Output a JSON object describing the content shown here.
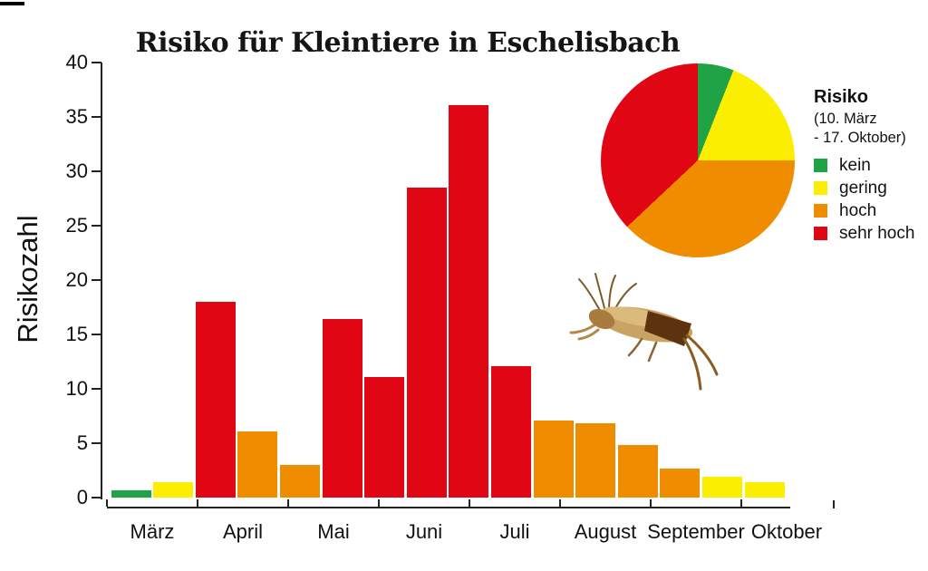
{
  "title": "Risiko für Kleintiere in Eschelisbach",
  "y_axis": {
    "label": "Risikozahl",
    "min": 0,
    "max": 40,
    "tick_step": 5
  },
  "x_axis": {
    "months": [
      "März",
      "April",
      "Mai",
      "Juni",
      "Juli",
      "August",
      "September",
      "Oktober"
    ]
  },
  "legend": {
    "title": "Risiko",
    "period_line1": "(10. März",
    "period_line2": " - 17. Oktober)",
    "items": [
      {
        "label": "kein",
        "level": "kein"
      },
      {
        "label": "gering",
        "level": "gering"
      },
      {
        "label": "hoch",
        "level": "hoch"
      },
      {
        "label": "sehr hoch",
        "level": "sehr hoch"
      }
    ]
  },
  "colors": {
    "kein": "#1fa344",
    "gering": "#fcee00",
    "hoch": "#f08c00",
    "sehr hoch": "#e00613",
    "axis": "#222222",
    "title_text": "#171513"
  },
  "cricket_image_alt": "Maulwurfsgrille (mole cricket)",
  "chart_data": [
    {
      "type": "bar",
      "title": "Risiko für Kleintiere in Eschelisbach",
      "xlabel": "",
      "ylabel": "Risikozahl",
      "ylim": [
        0,
        40
      ],
      "grid": false,
      "categories": [
        "März",
        "April",
        "Mai",
        "Juni",
        "Juli",
        "August",
        "September",
        "Oktober"
      ],
      "bars": [
        {
          "month": "März",
          "value": 0.7,
          "level": "kein"
        },
        {
          "month": "März",
          "value": 1.4,
          "level": "gering"
        },
        {
          "month": "April",
          "value": 18.0,
          "level": "sehr hoch"
        },
        {
          "month": "April",
          "value": 6.1,
          "level": "hoch"
        },
        {
          "month": "Mai",
          "value": 3.0,
          "level": "hoch"
        },
        {
          "month": "Mai",
          "value": 16.4,
          "level": "sehr hoch"
        },
        {
          "month": "Juni",
          "value": 11.1,
          "level": "sehr hoch"
        },
        {
          "month": "Juni",
          "value": 28.5,
          "level": "sehr hoch"
        },
        {
          "month": "Juli",
          "value": 36.1,
          "level": "sehr hoch"
        },
        {
          "month": "Juli",
          "value": 12.1,
          "level": "sehr hoch"
        },
        {
          "month": "August",
          "value": 7.1,
          "level": "hoch"
        },
        {
          "month": "August",
          "value": 6.8,
          "level": "hoch"
        },
        {
          "month": "September",
          "value": 4.8,
          "level": "hoch"
        },
        {
          "month": "September",
          "value": 2.7,
          "level": "hoch"
        },
        {
          "month": "Oktober",
          "value": 1.9,
          "level": "gering"
        },
        {
          "month": "Oktober",
          "value": 1.4,
          "level": "gering"
        }
      ]
    },
    {
      "type": "pie",
      "title": "Risiko",
      "subtitle": "(10. März - 17. Oktober)",
      "start_angle_deg": 0,
      "legend_position": "right",
      "slices": [
        {
          "label": "kein",
          "level": "kein",
          "percent": 6
        },
        {
          "label": "gering",
          "level": "gering",
          "percent": 19
        },
        {
          "label": "hoch",
          "level": "hoch",
          "percent": 38
        },
        {
          "label": "sehr hoch",
          "level": "sehr hoch",
          "percent": 37
        }
      ]
    }
  ]
}
